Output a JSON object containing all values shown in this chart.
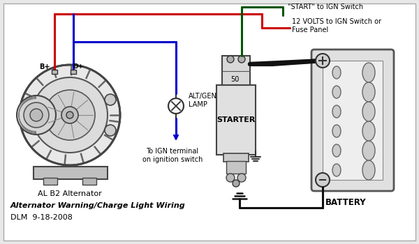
{
  "title": "Alternator Warning/Charge Light Wiring",
  "subtitle": "DLM  9-18-2008",
  "bg_color": "#e8e8e8",
  "inner_bg": "#f5f5f5",
  "label_alternator": "AL B2 Alternator",
  "label_starter": "STARTER",
  "label_battery": "BATTERY",
  "label_lamp": "ALT/GEN\nLAMP",
  "label_bplus": "B+",
  "label_dplus": "D+",
  "label_s50": "50",
  "label_ign": "To IGN terminal\non ignition switch",
  "label_start_ign": "\"START\" to IGN Switch",
  "label_12v": "12 VOLTS to IGN Switch or\nFuse Panel",
  "wire_red": "#cc0000",
  "wire_blue": "#0000cc",
  "wire_green": "#005500",
  "wire_black": "#111111",
  "dark_gray": "#555555",
  "med_gray": "#888888",
  "light_gray": "#cccccc",
  "comp_face": "#e0e0e0",
  "line_color": "#333333"
}
